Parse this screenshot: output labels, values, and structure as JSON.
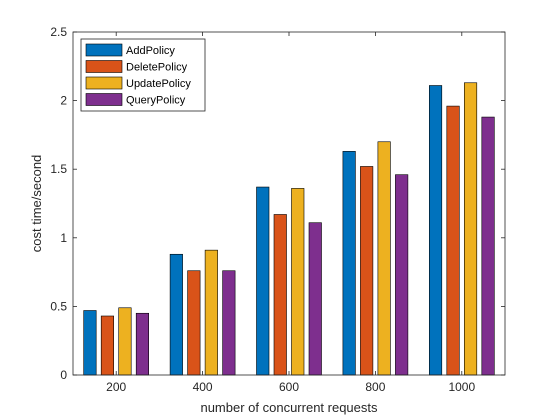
{
  "chart_data": {
    "type": "bar",
    "title": "",
    "xlabel": "number of concurrent requests",
    "ylabel": "cost time/second",
    "categories": [
      "200",
      "400",
      "600",
      "800",
      "1000"
    ],
    "ylim": [
      0,
      2.5
    ],
    "yticks": [
      0,
      0.5,
      1,
      1.5,
      2,
      2.5
    ],
    "ytick_labels": [
      "0",
      "0.5",
      "1",
      "1.5",
      "2",
      "2.5"
    ],
    "grid": false,
    "legend_position": "top-left",
    "series": [
      {
        "name": "AddPolicy",
        "color": "#0072BD",
        "values": [
          0.47,
          0.88,
          1.37,
          1.63,
          2.11
        ]
      },
      {
        "name": "DeletePolicy",
        "color": "#D95319",
        "values": [
          0.43,
          0.76,
          1.17,
          1.52,
          1.96
        ]
      },
      {
        "name": "UpdatePolicy",
        "color": "#EDB120",
        "values": [
          0.49,
          0.91,
          1.36,
          1.7,
          2.13
        ]
      },
      {
        "name": "QueryPolicy",
        "color": "#7E2F8E",
        "values": [
          0.45,
          0.76,
          1.11,
          1.46,
          1.88
        ]
      }
    ]
  }
}
